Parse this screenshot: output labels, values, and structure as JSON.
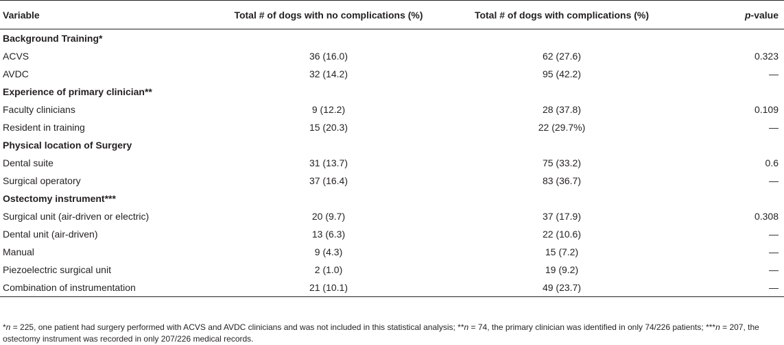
{
  "table": {
    "headers": {
      "variable": "Variable",
      "no_complications": "Total # of dogs with no complications (%)",
      "complications": "Total # of dogs with complications (%)",
      "p_value_italic": "p",
      "p_value_rest": "-value"
    },
    "sections": [
      {
        "title": "Background Training*",
        "rows": [
          {
            "variable": "ACVS",
            "no": "36 (16.0)",
            "yes": "62 (27.6)",
            "p": "0.323"
          },
          {
            "variable": "AVDC",
            "no": "32 (14.2)",
            "yes": "95 (42.2)",
            "p": "—"
          }
        ]
      },
      {
        "title": "Experience of primary clinician**",
        "rows": [
          {
            "variable": "Faculty clinicians",
            "no": "9 (12.2)",
            "yes": "28 (37.8)",
            "p": "0.109"
          },
          {
            "variable": "Resident in training",
            "no": "15 (20.3)",
            "yes": "22 (29.7%)",
            "p": "—"
          }
        ]
      },
      {
        "title": "Physical location of Surgery",
        "rows": [
          {
            "variable": "Dental suite",
            "no": "31 (13.7)",
            "yes": "75 (33.2)",
            "p": "0.6"
          },
          {
            "variable": "Surgical operatory",
            "no": "37 (16.4)",
            "yes": "83 (36.7)",
            "p": "—"
          }
        ]
      },
      {
        "title": "Ostectomy instrument***",
        "rows": [
          {
            "variable": "Surgical unit (air-driven or electric)",
            "no": "20 (9.7)",
            "yes": "37 (17.9)",
            "p": "0.308"
          },
          {
            "variable": "Dental unit (air-driven)",
            "no": "13 (6.3)",
            "yes": "22 (10.6)",
            "p": "—"
          },
          {
            "variable": "Manual",
            "no": "9 (4.3)",
            "yes": "15 (7.2)",
            "p": "—"
          },
          {
            "variable": "Piezoelectric surgical unit",
            "no": "2 (1.0)",
            "yes": "19 (9.2)",
            "p": "—"
          },
          {
            "variable": "Combination of instrumentation",
            "no": "21 (10.1)",
            "yes": "49 (23.7)",
            "p": "—"
          }
        ]
      }
    ]
  },
  "footnote": {
    "part1_mark": "*",
    "part1_n": "n",
    "part1_text": " = 225, one patient had surgery performed with ACVS and AVDC clinicians and was not included in this statistical analysis; ",
    "part2_mark": "**",
    "part2_n": "n",
    "part2_text": " = 74, the primary clinician was identified in only 74/226 patients; ",
    "part3_mark": "***",
    "part3_n": "n",
    "part3_text": " = 207, the ostectomy instrument was recorded in only 207/226 medical records."
  }
}
